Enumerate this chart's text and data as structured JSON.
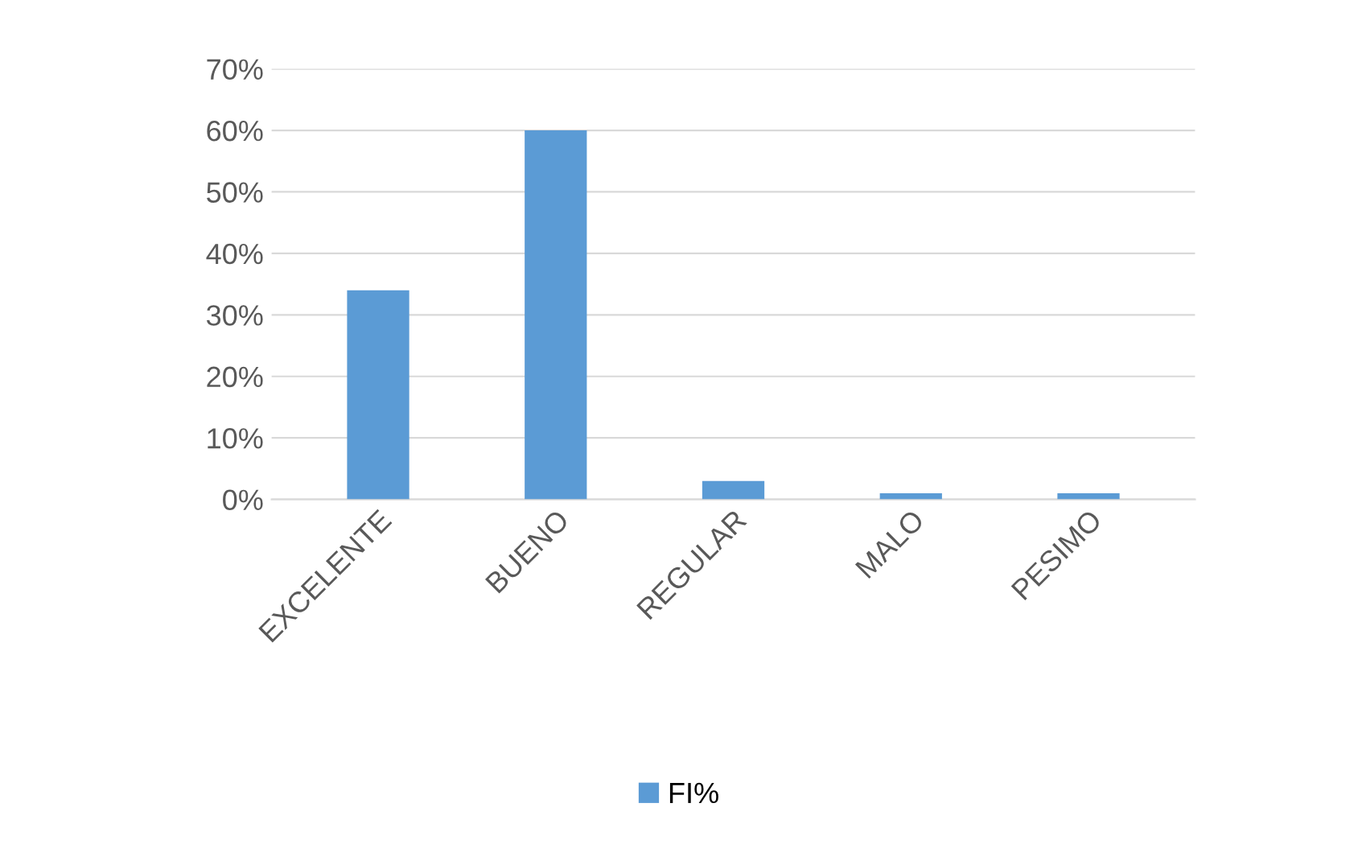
{
  "chart_data": {
    "type": "bar",
    "categories": [
      "EXCELENTE",
      "BUENO",
      "REGULAR",
      "MALO",
      "PESIMO"
    ],
    "series": [
      {
        "name": "FI%",
        "color": "#5b9bd5",
        "values": [
          0.34,
          0.6,
          0.03,
          0.01,
          0.01
        ]
      }
    ],
    "ylim": [
      0,
      0.7
    ],
    "yticks": [
      {
        "value": 0,
        "label": "0%"
      },
      {
        "value": 0.1,
        "label": "10%"
      },
      {
        "value": 0.2,
        "label": "20%"
      },
      {
        "value": 0.3,
        "label": "30%"
      },
      {
        "value": 0.4,
        "label": "40%"
      },
      {
        "value": 0.5,
        "label": "50%"
      },
      {
        "value": 0.6,
        "label": "60%"
      },
      {
        "value": 0.7,
        "label": "70%"
      }
    ],
    "grid": "y",
    "legend": "bottom"
  }
}
